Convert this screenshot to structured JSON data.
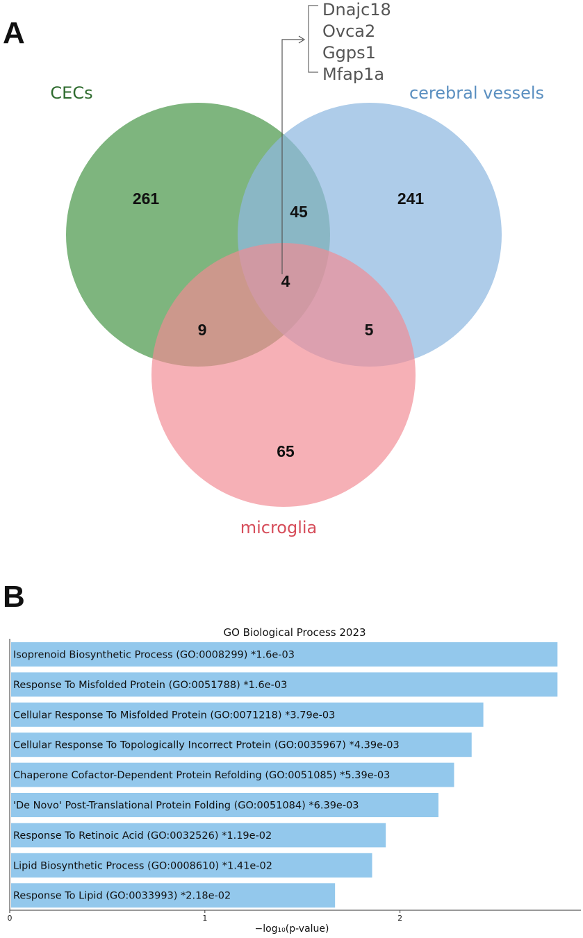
{
  "panels": {
    "a_label": "A",
    "b_label": "B"
  },
  "chart_data": [
    {
      "type": "venn",
      "sets": [
        {
          "name": "CECs",
          "color": "#5aa05a",
          "label_color": "#2e6b2e"
        },
        {
          "name": "cerebral vessels",
          "color": "#8fb8e0",
          "label_color": "#5a8fc0"
        },
        {
          "name": "microglia",
          "color": "#f28b93",
          "label_color": "#d64d5a"
        }
      ],
      "regions": {
        "cecs_only": "261",
        "vessels_only": "241",
        "microglia_only": "65",
        "cecs_vessels": "45",
        "cecs_microglia": "9",
        "vessels_microglia": "5",
        "all_three": "4"
      },
      "shared_genes": [
        "Dnajc18",
        "Ovca2",
        "Ggps1",
        "Mfap1a"
      ]
    },
    {
      "type": "bar",
      "orientation": "horizontal",
      "title": "GO Biological Process 2023",
      "xlabel": "−log₁₀(p-value)",
      "xlim": [
        0,
        2.92
      ],
      "xticks": [
        "0",
        "1",
        "2"
      ],
      "bar_color": "#93c8ec",
      "categories": [
        "Isoprenoid Biosynthetic Process (GO:0008299)  *1.6e-03",
        "Response To Misfolded Protein (GO:0051788)  *1.6e-03",
        "Cellular Response To Misfolded Protein (GO:0071218)  *3.79e-03",
        "Cellular Response To Topologically Incorrect Protein (GO:0035967)  *4.39e-03",
        "Chaperone Cofactor-Dependent Protein Refolding (GO:0051085)  *5.39e-03",
        "'De Novo' Post-Translational Protein Folding (GO:0051084)  *6.39e-03",
        "Response To Retinoic Acid (GO:0032526)  *1.19e-02",
        "Lipid Biosynthetic Process (GO:0008610)  *1.41e-02",
        "Response To Lipid (GO:0033993)  *2.18e-02"
      ],
      "values": [
        2.8,
        2.8,
        2.42,
        2.36,
        2.27,
        2.19,
        1.92,
        1.85,
        1.66
      ]
    }
  ]
}
